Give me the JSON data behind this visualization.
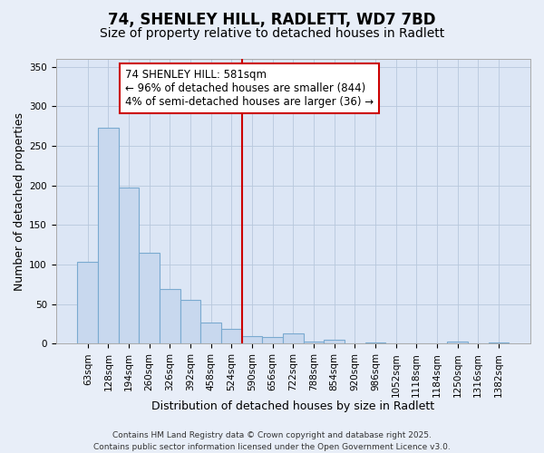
{
  "title": "74, SHENLEY HILL, RADLETT, WD7 7BD",
  "subtitle": "Size of property relative to detached houses in Radlett",
  "xlabel": "Distribution of detached houses by size in Radlett",
  "ylabel": "Number of detached properties",
  "bar_labels": [
    "63sqm",
    "128sqm",
    "194sqm",
    "260sqm",
    "326sqm",
    "392sqm",
    "458sqm",
    "524sqm",
    "590sqm",
    "656sqm",
    "722sqm",
    "788sqm",
    "854sqm",
    "920sqm",
    "986sqm",
    "1052sqm",
    "1118sqm",
    "1184sqm",
    "1250sqm",
    "1316sqm",
    "1382sqm"
  ],
  "bar_values": [
    103,
    273,
    197,
    115,
    69,
    55,
    27,
    19,
    10,
    9,
    13,
    3,
    5,
    0,
    1,
    0,
    0,
    0,
    3,
    0,
    2
  ],
  "bar_color": "#c8d8ee",
  "bar_edge_color": "#7aaad0",
  "vline_x_index": 8,
  "vline_color": "#cc0000",
  "annotation_text": "74 SHENLEY HILL: 581sqm\n← 96% of detached houses are smaller (844)\n4% of semi-detached houses are larger (36) →",
  "annotation_box_color": "#ffffff",
  "annotation_box_edge": "#cc0000",
  "ylim": [
    0,
    360
  ],
  "yticks": [
    0,
    50,
    100,
    150,
    200,
    250,
    300,
    350
  ],
  "footer_line1": "Contains HM Land Registry data © Crown copyright and database right 2025.",
  "footer_line2": "Contains public sector information licensed under the Open Government Licence v3.0.",
  "background_color": "#e8eef8",
  "plot_bg_color": "#dce6f5",
  "grid_color": "#b8c8dc",
  "title_fontsize": 12,
  "subtitle_fontsize": 10,
  "axis_label_fontsize": 9,
  "tick_fontsize": 7.5,
  "annotation_fontsize": 8.5,
  "footer_fontsize": 6.5
}
